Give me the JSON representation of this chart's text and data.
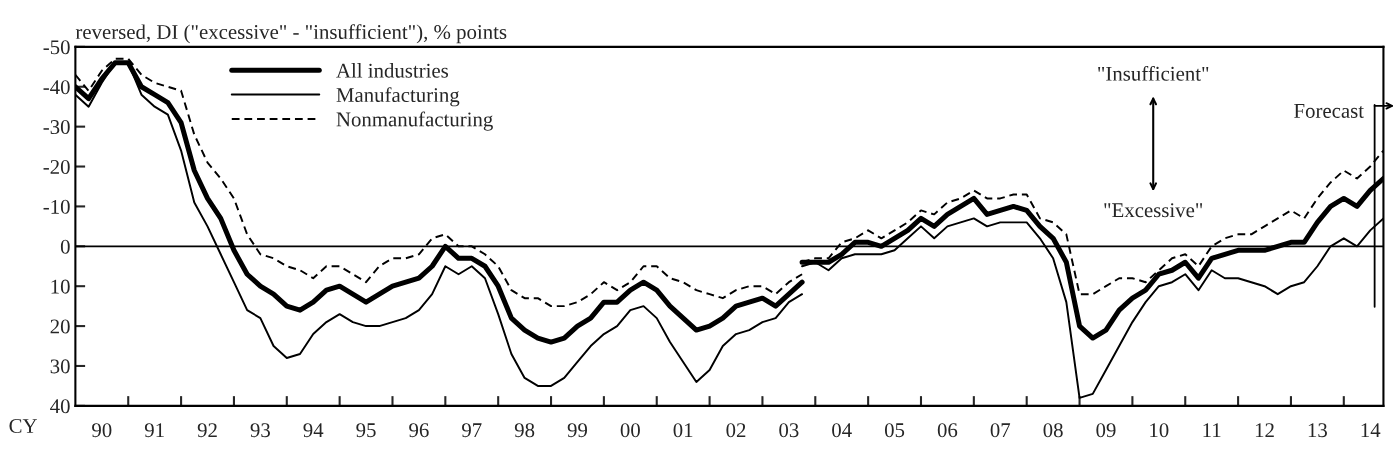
{
  "chart_data": {
    "type": "line",
    "ylabel": "reversed, DI (\"excessive\" - \"insufficient\"), % points",
    "x": [
      "1990-01",
      "1990-04",
      "1990-07",
      "1990-10",
      "1991-01",
      "1991-04",
      "1991-07",
      "1991-10",
      "1992-01",
      "1992-04",
      "1992-07",
      "1992-10",
      "1993-01",
      "1993-04",
      "1993-07",
      "1993-10",
      "1994-01",
      "1994-04",
      "1994-07",
      "1994-10",
      "1995-01",
      "1995-04",
      "1995-07",
      "1995-10",
      "1996-01",
      "1996-04",
      "1996-07",
      "1996-10",
      "1997-01",
      "1997-04",
      "1997-07",
      "1997-10",
      "1998-01",
      "1998-04",
      "1998-07",
      "1998-10",
      "1999-01",
      "1999-04",
      "1999-07",
      "1999-10",
      "2000-01",
      "2000-04",
      "2000-07",
      "2000-10",
      "2001-01",
      "2001-04",
      "2001-07",
      "2001-10",
      "2002-01",
      "2002-04",
      "2002-07",
      "2002-10",
      "2003-01",
      "2003-04",
      "2003-07",
      "2003-10"
    ],
    "series": [
      {
        "name": "All industries",
        "color": "#000000",
        "line_style": "solid",
        "values": [
          -40,
          -37,
          -42,
          -46,
          -46,
          -40,
          -38,
          -36,
          -31,
          -19,
          -12,
          -7,
          1,
          7,
          10,
          12,
          15,
          16,
          14,
          11,
          10,
          12,
          14,
          12,
          10,
          9,
          8,
          5,
          0,
          3,
          3,
          5,
          10,
          18,
          21,
          23,
          24,
          23,
          20,
          18,
          14,
          14,
          11,
          9,
          11,
          15,
          18,
          21,
          20,
          18,
          15,
          14,
          13,
          15,
          12,
          9
        ]
      },
      {
        "name": "Manufacturing",
        "color": "#000000",
        "line_style": "solid",
        "values": [
          -38,
          -35,
          -41,
          -46,
          -46,
          -38,
          -35,
          -33,
          -24,
          -11,
          -5,
          2,
          9,
          16,
          18,
          25,
          28,
          27,
          22,
          19,
          17,
          19,
          20,
          20,
          19,
          18,
          16,
          12,
          5,
          7,
          5,
          8,
          17,
          27,
          33,
          35,
          35,
          33,
          29,
          25,
          22,
          20,
          16,
          15,
          18,
          24,
          29,
          34,
          31,
          25,
          22,
          21,
          19,
          18,
          14,
          12
        ]
      },
      {
        "name": "Nonmanufacturing",
        "color": "#000000",
        "line_style": "dashed",
        "values": [
          -43,
          -39,
          -44,
          -47,
          -47,
          -43,
          -41,
          -40,
          -39,
          -28,
          -21,
          -17,
          -12,
          -3,
          2,
          3,
          5,
          6,
          8,
          5,
          5,
          7,
          9,
          5,
          3,
          3,
          2,
          -2,
          -3,
          0,
          0,
          2,
          5,
          11,
          13,
          13,
          15,
          15,
          14,
          12,
          9,
          11,
          9,
          5,
          5,
          8,
          9,
          11,
          12,
          13,
          11,
          10,
          10,
          12,
          9,
          7
        ]
      },
      {
        "color": "#000000",
        "line_style": "solid",
        "x": [
          "2003-10",
          "2004-01",
          "2004-04",
          "2004-07",
          "2004-10",
          "2005-01",
          "2005-04",
          "2005-07",
          "2005-10",
          "2006-01",
          "2006-04",
          "2006-07",
          "2006-10",
          "2007-01",
          "2007-04",
          "2007-07",
          "2007-10",
          "2008-01",
          "2008-04",
          "2008-07",
          "2008-10",
          "2009-01",
          "2009-04",
          "2009-07",
          "2009-10",
          "2010-01",
          "2010-04",
          "2010-07",
          "2010-10",
          "2011-01",
          "2011-04",
          "2011-07",
          "2011-10",
          "2012-01",
          "2012-04",
          "2012-07",
          "2012-10",
          "2013-01",
          "2013-04",
          "2013-07",
          "2013-10",
          "2014-01",
          "2014-04",
          "2014-07",
          "2014-10"
        ],
        "values": [
          4,
          4,
          4,
          2,
          -1,
          -1,
          0,
          -2,
          -4,
          -7,
          -5,
          -8,
          -10,
          -12,
          -8,
          -9,
          -10,
          -9,
          -5,
          -2,
          4,
          20,
          23,
          21,
          16,
          13,
          11,
          7,
          6,
          4,
          8,
          3,
          2,
          1,
          1,
          1,
          0,
          -1,
          -1,
          -6,
          -10,
          -12,
          -10,
          -14,
          -17
        ]
      },
      {
        "color": "#000000",
        "line_style": "solid",
        "x": [
          "2003-10",
          "2004-01",
          "2004-04",
          "2004-07",
          "2004-10",
          "2005-01",
          "2005-04",
          "2005-07",
          "2005-10",
          "2006-01",
          "2006-04",
          "2006-07",
          "2006-10",
          "2007-01",
          "2007-04",
          "2007-07",
          "2007-10",
          "2008-01",
          "2008-04",
          "2008-07",
          "2008-10",
          "2009-01",
          "2009-04",
          "2009-07",
          "2009-10",
          "2010-01",
          "2010-04",
          "2010-07",
          "2010-10",
          "2011-01",
          "2011-04",
          "2011-07",
          "2011-10",
          "2012-01",
          "2012-04",
          "2012-07",
          "2012-10",
          "2013-01",
          "2013-04",
          "2013-07",
          "2013-10",
          "2014-01",
          "2014-04",
          "2014-07",
          "2014-10"
        ],
        "values": [
          5,
          4,
          6,
          3,
          2,
          2,
          2,
          1,
          -2,
          -5,
          -2,
          -5,
          -6,
          -7,
          -5,
          -6,
          -6,
          -6,
          -2,
          3,
          14,
          38,
          37,
          31,
          25,
          19,
          14,
          10,
          9,
          7,
          11,
          6,
          8,
          8,
          9,
          10,
          12,
          10,
          9,
          5,
          0,
          -2,
          0,
          -4,
          -7
        ]
      },
      {
        "color": "#000000",
        "line_style": "dashed",
        "x": [
          "2003-10",
          "2004-01",
          "2004-04",
          "2004-07",
          "2004-10",
          "2005-01",
          "2005-04",
          "2005-07",
          "2005-10",
          "2006-01",
          "2006-04",
          "2006-07",
          "2006-10",
          "2007-01",
          "2007-04",
          "2007-07",
          "2007-10",
          "2008-01",
          "2008-04",
          "2008-07",
          "2008-10",
          "2009-01",
          "2009-04",
          "2009-07",
          "2009-10",
          "2010-01",
          "2010-04",
          "2010-07",
          "2010-10",
          "2011-01",
          "2011-04",
          "2011-07",
          "2011-10",
          "2012-01",
          "2012-04",
          "2012-07",
          "2012-10",
          "2013-01",
          "2013-04",
          "2013-07",
          "2013-10",
          "2014-01",
          "2014-04",
          "2014-07",
          "2014-10"
        ],
        "values": [
          4,
          3,
          3,
          -1,
          -2,
          -4,
          -2,
          -4,
          -6,
          -9,
          -8,
          -11,
          -12,
          -14,
          -12,
          -12,
          -13,
          -13,
          -7,
          -6,
          -3,
          12,
          12,
          10,
          8,
          8,
          9,
          6,
          3,
          2,
          5,
          0,
          -2,
          -3,
          -3,
          -5,
          -7,
          -9,
          -7,
          -12,
          -16,
          -19,
          -17,
          -20,
          -24
        ]
      }
    ],
    "xlim": [
      "1990-01",
      "2014-10"
    ],
    "xticks": [
      {
        "value": "1990-07",
        "label": "90"
      },
      {
        "value": "1991-01",
        "label": null
      },
      {
        "value": "1991-07",
        "label": "91"
      },
      {
        "value": "1992-01",
        "label": null
      },
      {
        "value": "1992-07",
        "label": "92"
      },
      {
        "value": "1993-01",
        "label": null
      },
      {
        "value": "1993-07",
        "label": "93"
      },
      {
        "value": "1994-01",
        "label": null
      },
      {
        "value": "1994-07",
        "label": "94"
      },
      {
        "value": "1995-01",
        "label": null
      },
      {
        "value": "1995-07",
        "label": "95"
      },
      {
        "value": "1996-01",
        "label": null
      },
      {
        "value": "1996-07",
        "label": "96"
      },
      {
        "value": "1997-01",
        "label": null
      },
      {
        "value": "1997-07",
        "label": "97"
      },
      {
        "value": "1998-01",
        "label": null
      },
      {
        "value": "1998-07",
        "label": "98"
      },
      {
        "value": "1999-01",
        "label": null
      },
      {
        "value": "1999-07",
        "label": "99"
      },
      {
        "value": "2000-01",
        "label": null
      },
      {
        "value": "2000-07",
        "label": "00"
      },
      {
        "value": "2001-01",
        "label": null
      },
      {
        "value": "2001-07",
        "label": "01"
      },
      {
        "value": "2002-01",
        "label": null
      },
      {
        "value": "2002-07",
        "label": "02"
      },
      {
        "value": "2003-01",
        "label": null
      },
      {
        "value": "2003-07",
        "label": "03"
      },
      {
        "value": "2004-01",
        "label": null
      },
      {
        "value": "2004-07",
        "label": "04"
      },
      {
        "value": "2005-01",
        "label": null
      },
      {
        "value": "2005-07",
        "label": "05"
      },
      {
        "value": "2006-01",
        "label": null
      },
      {
        "value": "2006-07",
        "label": "06"
      },
      {
        "value": "2007-01",
        "label": null
      },
      {
        "value": "2007-07",
        "label": "07"
      },
      {
        "value": "2008-01",
        "label": null
      },
      {
        "value": "2008-07",
        "label": "08"
      },
      {
        "value": "2009-01",
        "label": null
      },
      {
        "value": "2009-07",
        "label": "09"
      },
      {
        "value": "2010-01",
        "label": null
      },
      {
        "value": "2010-07",
        "label": "10"
      },
      {
        "value": "2011-01",
        "label": null
      },
      {
        "value": "2011-07",
        "label": "11"
      },
      {
        "value": "2012-01",
        "label": null
      },
      {
        "value": "2012-07",
        "label": "12"
      },
      {
        "value": "2013-01",
        "label": null
      },
      {
        "value": "2013-07",
        "label": "13"
      },
      {
        "value": "2014-01",
        "label": null
      },
      {
        "value": "2014-07",
        "label": "14"
      }
    ],
    "ylim": [
      40,
      -50
    ],
    "yticks": [
      -50,
      -40,
      -30,
      -20,
      -10,
      0,
      10,
      20,
      30,
      40
    ],
    "ref_lines": [
      {
        "axis": "y",
        "value": 0
      },
      {
        "axis": "x",
        "value": "2014-08",
        "label": "Forecast"
      }
    ],
    "annotations": [
      "CY",
      "\"Insufficient\"",
      "\"Excessive\""
    ],
    "legend": "top left",
    "grid": false,
    "marker": "none"
  }
}
